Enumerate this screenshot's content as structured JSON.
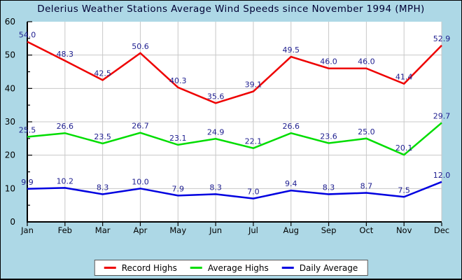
{
  "chart_data": {
    "type": "line",
    "title": "Delerius Weather Stations Average Wind Speeds since November 1994 (MPH)",
    "title_color": "#000033",
    "categories": [
      "Jan",
      "Feb",
      "Mar",
      "Apr",
      "May",
      "Jun",
      "Jul",
      "Aug",
      "Sep",
      "Oct",
      "Nov",
      "Dec"
    ],
    "series": [
      {
        "name": "Record Highs",
        "color": "#ee0000",
        "values": [
          54.0,
          48.3,
          42.5,
          50.6,
          40.3,
          35.6,
          39.1,
          49.5,
          46.0,
          46.0,
          41.4,
          52.9
        ]
      },
      {
        "name": "Average Highs",
        "color": "#00dd00",
        "values": [
          25.5,
          26.6,
          23.5,
          26.7,
          23.1,
          24.9,
          22.1,
          26.6,
          23.6,
          25.0,
          20.1,
          29.7
        ]
      },
      {
        "name": "Daily Average",
        "color": "#0000e0",
        "values": [
          9.9,
          10.2,
          8.3,
          10.0,
          7.9,
          8.3,
          7.0,
          9.4,
          8.3,
          8.7,
          7.5,
          12.0
        ]
      }
    ],
    "xlabel": "",
    "ylabel": "",
    "ylim": [
      0,
      60
    ],
    "yticks": [
      0,
      10,
      20,
      30,
      40,
      50,
      60
    ],
    "yminor_step": 5,
    "grid": true,
    "legend_position": "bottom",
    "background": "#add8e6",
    "plot_background": "#ffffff",
    "grid_color": "#c8c8c8",
    "axis_color": "#000000",
    "label_color": "#202090"
  }
}
